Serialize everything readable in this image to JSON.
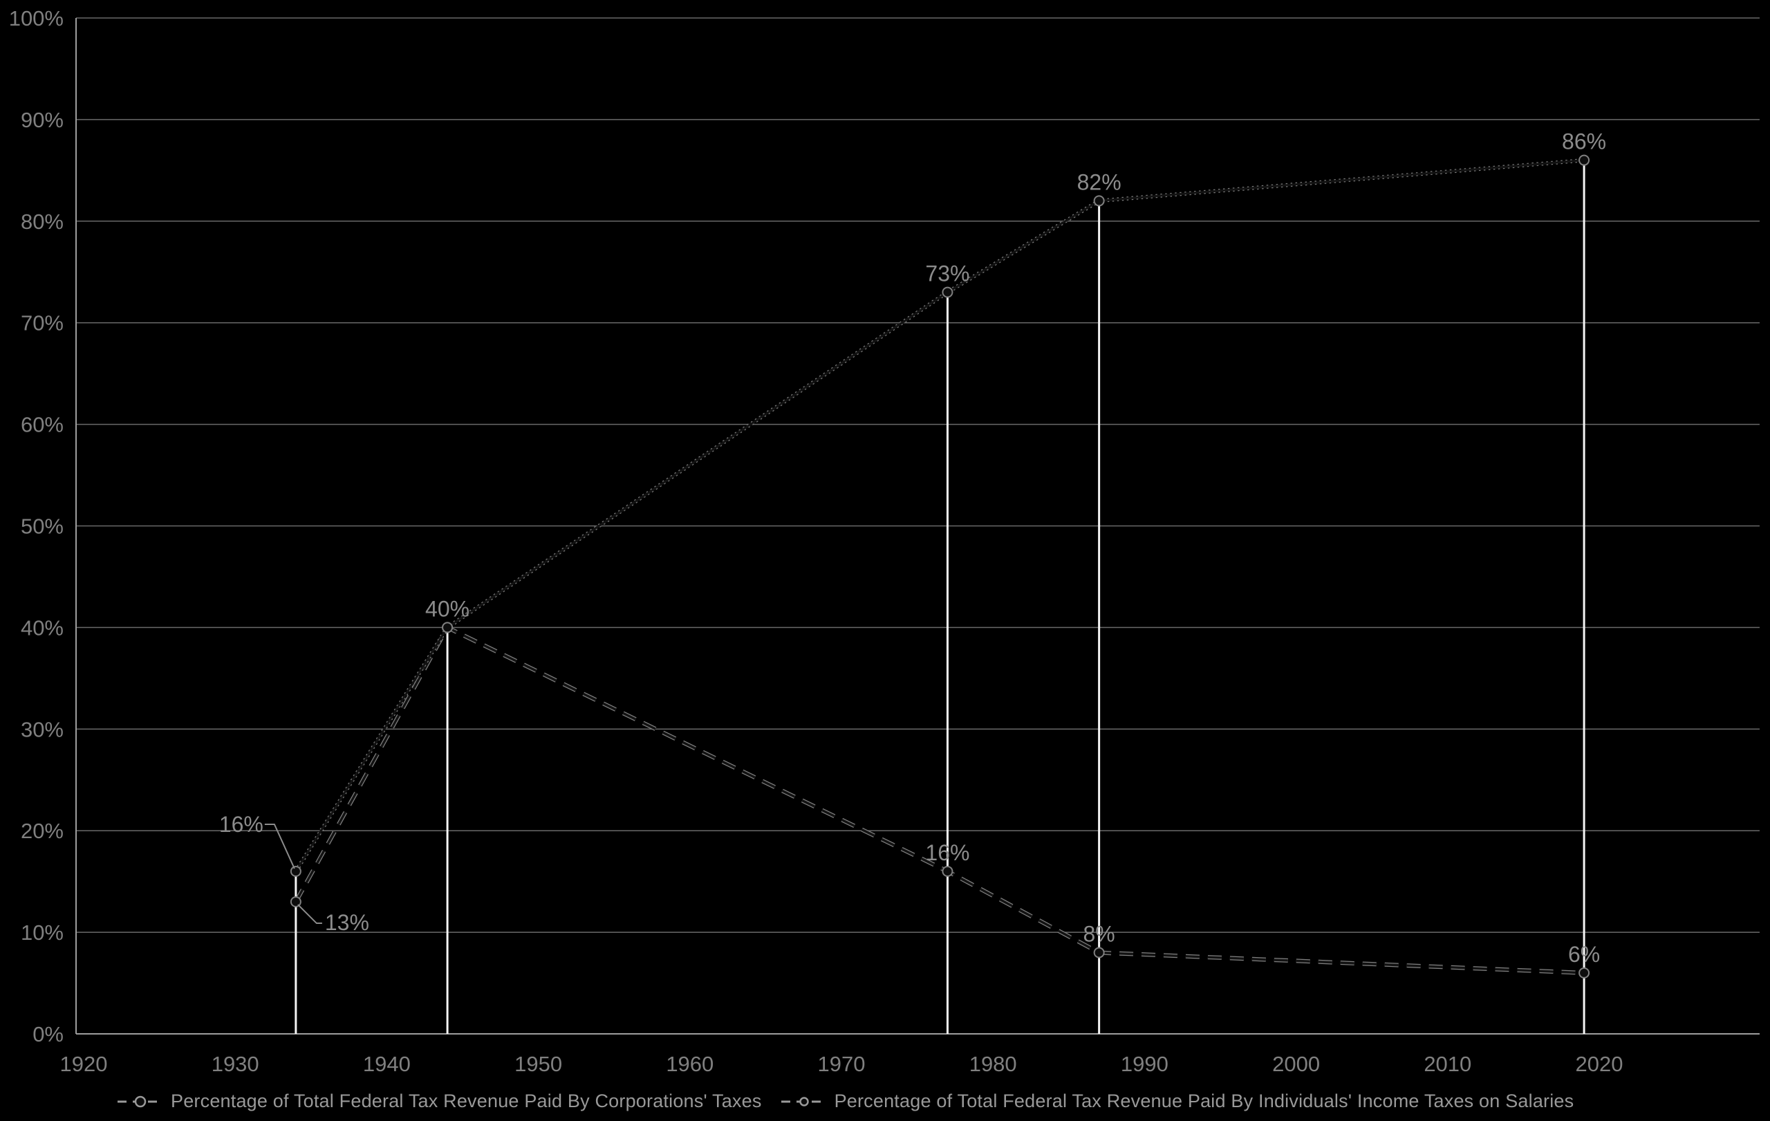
{
  "colors": {
    "background": "#000000",
    "gridline": "#696969",
    "axis_line": "#9e9e9e",
    "tick_label": "#808080",
    "data_label": "#8c8c8c",
    "drop_line": "#f5f5f5",
    "series_core": "#121212",
    "series_fringe": "#808080",
    "legend_text": "#999999"
  },
  "chart_data": {
    "type": "line",
    "title": "",
    "xlabel": "",
    "ylabel": "",
    "legend_position": "bottom",
    "x_axis": {
      "ticks": [
        "1920",
        "1930",
        "1940",
        "1950",
        "1960",
        "1970",
        "1980",
        "1990",
        "2000",
        "2010",
        "2020"
      ],
      "min": 1919.5,
      "max": 2030.5
    },
    "y_axis": {
      "ticks": [
        "0%",
        "10%",
        "20%",
        "30%",
        "40%",
        "50%",
        "60%",
        "70%",
        "80%",
        "90%",
        "100%"
      ],
      "min": 0,
      "max": 100,
      "unit": "%",
      "grid": true
    },
    "series": [
      {
        "name": "Percentage of Total Federal Tax Revenue Paid By Corporations' Taxes",
        "line_style": "dashed",
        "marker": "circle",
        "x": [
          1934,
          1944,
          1977,
          1987,
          2019
        ],
        "values": [
          13,
          40,
          16,
          8,
          6
        ],
        "labels": [
          {
            "year": 1934,
            "text": "13%",
            "placement": "callout-below-right"
          },
          {
            "year": 1977,
            "text": "16%",
            "placement": "above"
          },
          {
            "year": 1987,
            "text": "8%",
            "placement": "above"
          },
          {
            "year": 2019,
            "text": "6%",
            "placement": "above"
          }
        ]
      },
      {
        "name": "Percentage of Total Federal Tax Revenue Paid By Individuals' Income Taxes on Salaries",
        "line_style": "solid",
        "marker": "circle",
        "x": [
          1934,
          1944,
          1977,
          1987,
          2019
        ],
        "values": [
          16,
          40,
          73,
          82,
          86
        ],
        "labels": [
          {
            "year": 1934,
            "text": "16%",
            "placement": "callout-above-left"
          },
          {
            "year": 1944,
            "text": "40%",
            "placement": "above"
          },
          {
            "year": 1977,
            "text": "73%",
            "placement": "above"
          },
          {
            "year": 1987,
            "text": "82%",
            "placement": "above"
          },
          {
            "year": 2019,
            "text": "86%",
            "placement": "above"
          }
        ]
      }
    ],
    "drop_lines": [
      {
        "year": 1934,
        "to_value": 16
      },
      {
        "year": 1944,
        "to_value": 40
      },
      {
        "year": 1977,
        "to_value": 73
      },
      {
        "year": 1987,
        "to_value": 82
      },
      {
        "year": 2019,
        "to_value": 86
      }
    ]
  }
}
